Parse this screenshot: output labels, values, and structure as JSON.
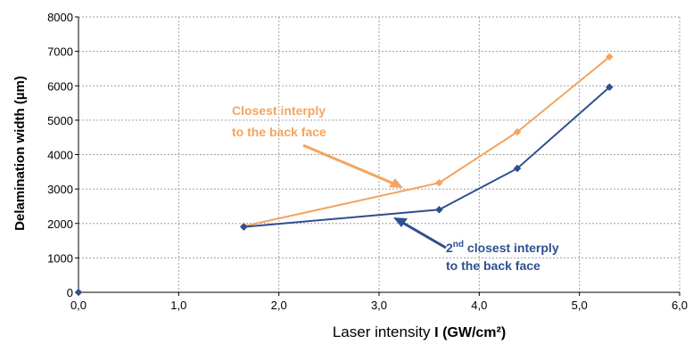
{
  "chart_data": {
    "type": "line",
    "title": "",
    "xlabel_prefix": "Laser intensity ",
    "xlabel_main": "I (GW/cm²)",
    "ylabel": "Delamination width (µm)",
    "xlim": [
      0,
      6
    ],
    "ylim": [
      0,
      8000
    ],
    "xticks": [
      "0,0",
      "1,0",
      "2,0",
      "3,0",
      "4,0",
      "5,0",
      "6,0"
    ],
    "yticks": [
      "0",
      "1000",
      "2000",
      "3000",
      "4000",
      "5000",
      "6000",
      "7000",
      "8000"
    ],
    "grid": true,
    "series": [
      {
        "color": "#F4A460",
        "x": [
          1.65,
          3.6,
          4.38,
          5.3
        ],
        "y": [
          1920,
          3180,
          4660,
          6840
        ]
      },
      {
        "color": "#2F4F8F",
        "x": [
          0,
          1.65,
          3.6,
          4.38,
          5.3
        ],
        "y": [
          0,
          1900,
          2400,
          3600,
          5960
        ],
        "line_from_index": 1
      }
    ],
    "annotations": [
      {
        "lines": [
          "Closest interply",
          "to the back face"
        ],
        "sup": "",
        "color": "#F4A460"
      },
      {
        "lines": [
          "2",
          "nd",
          " closest interply",
          "to the back face"
        ],
        "color": "#2F4F8F"
      }
    ]
  }
}
